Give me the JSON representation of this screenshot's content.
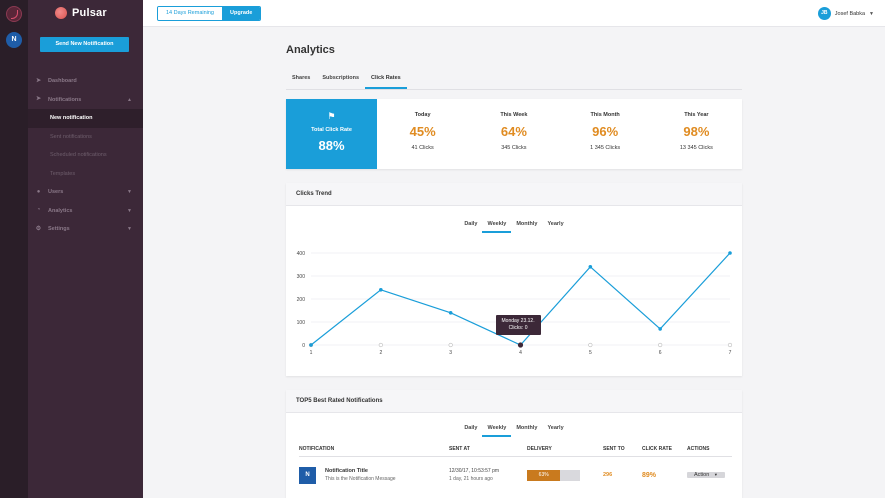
{
  "rail": {
    "app_initials": "N"
  },
  "sidebar": {
    "brand": "Pulsar",
    "send_button": "Send New Notification",
    "items": [
      {
        "label": "Dashboard",
        "icon": "rocket-icon"
      },
      {
        "label": "Notifications",
        "icon": "send-icon",
        "expanded": true
      },
      {
        "label": "Users",
        "icon": "users-icon"
      },
      {
        "label": "Analytics",
        "icon": "pie-chart-icon"
      },
      {
        "label": "Settings",
        "icon": "gear-icon"
      }
    ],
    "sub_items": [
      "New notification",
      "Sent notifications",
      "Scheduled notifications",
      "Templates"
    ]
  },
  "topbar": {
    "trial": "14 Days Remaining",
    "upgrade": "Upgrade",
    "user_initials": "JB",
    "user_name": "Josef Babka"
  },
  "page": {
    "title": "Analytics",
    "tabs": [
      "Shares",
      "Subscriptions",
      "Click Rates"
    ],
    "active_tab": "Click Rates"
  },
  "stats": {
    "total_label": "Total Click Rate",
    "total_value": "88%",
    "periods": [
      {
        "label": "Today",
        "pct": "45%",
        "clicks": "41 Clicks"
      },
      {
        "label": "This Week",
        "pct": "64%",
        "clicks": "345 Clicks"
      },
      {
        "label": "This Month",
        "pct": "96%",
        "clicks": "1 345 Clicks"
      },
      {
        "label": "This Year",
        "pct": "98%",
        "clicks": "13 345 Clicks"
      }
    ]
  },
  "trend": {
    "title": "Clicks Trend",
    "tabs": [
      "Daily",
      "Weekly",
      "Monthly",
      "Yearly"
    ],
    "active_tab": "Weekly",
    "tooltip_date": "Monday 23.12.",
    "tooltip_value": "Clicks: 0"
  },
  "chart_data": {
    "type": "line",
    "x": [
      1,
      2,
      3,
      4,
      5,
      6,
      7
    ],
    "values": [
      0,
      240,
      140,
      0,
      340,
      70,
      400
    ],
    "yticks": [
      0,
      100,
      200,
      300,
      400
    ],
    "ylim": [
      0,
      400
    ],
    "color": "#1a9ed9"
  },
  "top5": {
    "title": "TOP5 Best Rated Notifications",
    "tabs": [
      "Daily",
      "Weekly",
      "Monthly",
      "Yearly"
    ],
    "active_tab": "Weekly",
    "columns": [
      "NOTIFICATION",
      "SENT AT",
      "DELIVERY",
      "SENT TO",
      "CLICK RATE",
      "ACTIONS"
    ],
    "rows": [
      {
        "title": "Notification Title",
        "message": "This is the Notification Message",
        "sent_at": "12/30/17, 10:53:57 pm",
        "sent_ago": "1 day, 21 hours ago",
        "delivery": "63%",
        "delivery_value": 0.63,
        "sent_to": "296",
        "click_rate": "89%",
        "action": "Action"
      }
    ]
  }
}
